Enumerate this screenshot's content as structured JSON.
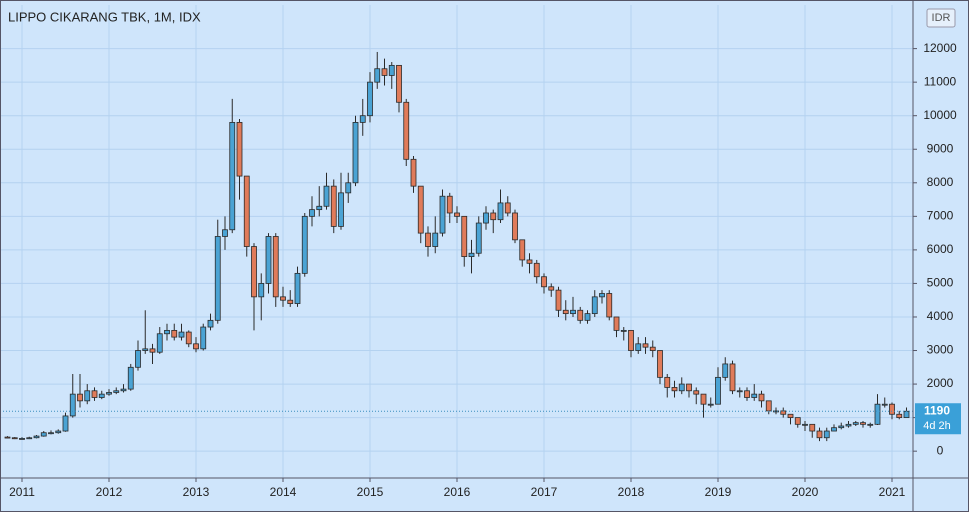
{
  "chart_data": {
    "type": "candlestick",
    "title": "LIPPO CIKARANG TBK, 1M, IDX",
    "currency": "IDR",
    "categories": [
      null,
      null,
      "2011",
      null,
      null,
      null,
      null,
      null,
      null,
      null,
      null,
      null,
      null,
      null,
      "2012",
      null,
      null,
      null,
      null,
      null,
      null,
      null,
      null,
      null,
      null,
      null,
      "2013",
      null,
      null,
      null,
      null,
      null,
      null,
      null,
      null,
      null,
      null,
      null,
      "2014",
      null,
      null,
      null,
      null,
      null,
      null,
      null,
      null,
      null,
      null,
      null,
      "2015",
      null,
      null,
      null,
      null,
      null,
      null,
      null,
      null,
      null,
      null,
      null,
      "2016",
      null,
      null,
      null,
      null,
      null,
      null,
      null,
      null,
      null,
      null,
      null,
      "2017",
      null,
      null,
      null,
      null,
      null,
      null,
      null,
      null,
      null,
      null,
      null,
      "2018",
      null,
      null,
      null,
      null,
      null,
      null,
      null,
      null,
      null,
      null,
      null,
      "2019",
      null,
      null,
      null,
      null,
      null,
      null,
      null,
      null,
      null,
      null,
      null,
      "2020",
      null,
      null,
      null,
      null,
      null,
      null,
      null,
      null,
      null,
      null,
      null,
      "2021",
      null,
      null
    ],
    "open": [
      420,
      400,
      380,
      380,
      400,
      450,
      550,
      550,
      600,
      1050,
      1700,
      1500,
      1800,
      1600,
      1700,
      1750,
      1800,
      1850,
      2500,
      3000,
      3050,
      2950,
      3500,
      3600,
      3400,
      3550,
      3200,
      3050,
      3700,
      3900,
      6400,
      6600,
      9800,
      8200,
      6100,
      4600,
      5000,
      6400,
      4600,
      4500,
      4400,
      5300,
      7000,
      7200,
      7300,
      7900,
      6700,
      7700,
      8000,
      9800,
      10000,
      11000,
      11400,
      11200,
      11500,
      10400,
      8700,
      7900,
      6500,
      6100,
      6500,
      7600,
      7100,
      7000,
      5800,
      5900,
      6800,
      7100,
      6900,
      7400,
      7100,
      6300,
      5700,
      5600,
      5200,
      4900,
      4800,
      4200,
      4100,
      4200,
      3900,
      4100,
      4600,
      4700,
      4000,
      3600,
      3600,
      3000,
      3200,
      3100,
      3000,
      2200,
      1900,
      1800,
      2000,
      1800,
      1700,
      1400,
      1400,
      2200,
      2600,
      1800,
      1800,
      1600,
      1700,
      1500,
      1200,
      1200,
      1100,
      1000,
      800,
      800,
      600,
      400,
      600,
      700,
      750,
      800,
      850,
      800,
      800,
      1400,
      1400,
      1100,
      1000
    ],
    "high": [
      450,
      420,
      420,
      430,
      480,
      600,
      620,
      650,
      1150,
      2300,
      2300,
      2000,
      1900,
      1800,
      1850,
      1900,
      2000,
      2600,
      3300,
      4200,
      3200,
      3700,
      3800,
      3800,
      3800,
      3600,
      3400,
      3800,
      4100,
      6900,
      7000,
      10500,
      9900,
      8200,
      6200,
      5300,
      6500,
      6500,
      4900,
      4800,
      5500,
      7100,
      7600,
      7900,
      8300,
      8100,
      8300,
      8300,
      10000,
      10500,
      11300,
      11900,
      11700,
      11600,
      11500,
      10500,
      8800,
      7900,
      6700,
      7000,
      7800,
      7700,
      7300,
      7000,
      6300,
      7000,
      7300,
      7200,
      7800,
      7600,
      7200,
      6300,
      5900,
      5700,
      5300,
      5000,
      4900,
      4500,
      4600,
      4300,
      4200,
      4800,
      4800,
      4800,
      4000,
      3700,
      3600,
      3400,
      3400,
      3300,
      3000,
      2300,
      2100,
      2200,
      2000,
      1900,
      1700,
      1600,
      2500,
      2800,
      2700,
      1900,
      1900,
      2000,
      1800,
      1500,
      1300,
      1300,
      1100,
      1000,
      900,
      800,
      700,
      700,
      800,
      850,
      900,
      900,
      900,
      850,
      1700,
      1600,
      1450,
      1200,
      1300
    ],
    "low": [
      380,
      360,
      350,
      360,
      380,
      430,
      500,
      520,
      580,
      1000,
      1300,
      1400,
      1500,
      1550,
      1650,
      1700,
      1750,
      1800,
      2400,
      2900,
      2600,
      2900,
      3300,
      3300,
      3300,
      3100,
      2950,
      3000,
      3600,
      3800,
      6000,
      6500,
      7500,
      5800,
      3600,
      3900,
      4700,
      4300,
      4300,
      4300,
      4300,
      5200,
      6700,
      7000,
      7200,
      6500,
      6600,
      7400,
      7900,
      9400,
      9800,
      10800,
      10900,
      10800,
      10100,
      8500,
      7700,
      6200,
      5800,
      5900,
      6400,
      6800,
      6800,
      5500,
      5300,
      5800,
      6600,
      6500,
      6800,
      7000,
      6200,
      5500,
      5300,
      5000,
      4700,
      4600,
      4000,
      3900,
      4000,
      3800,
      3800,
      4000,
      4400,
      3900,
      3400,
      3300,
      2800,
      2900,
      2900,
      2800,
      2000,
      1600,
      1600,
      1700,
      1600,
      1400,
      1000,
      1300,
      1400,
      2100,
      1700,
      1600,
      1500,
      1500,
      1300,
      1100,
      1100,
      1000,
      800,
      700,
      600,
      400,
      300,
      300,
      600,
      650,
      700,
      750,
      700,
      700,
      780,
      1300,
      950,
      950,
      990
    ],
    "close": [
      400,
      380,
      380,
      400,
      450,
      550,
      550,
      600,
      1050,
      1700,
      1500,
      1800,
      1600,
      1700,
      1750,
      1800,
      1850,
      2500,
      3000,
      3050,
      2950,
      3500,
      3600,
      3400,
      3550,
      3200,
      3050,
      3700,
      3900,
      6400,
      6600,
      9800,
      8200,
      6100,
      4600,
      5000,
      6400,
      4600,
      4500,
      4400,
      5300,
      7000,
      7200,
      7300,
      7900,
      6700,
      7700,
      8000,
      9800,
      10000,
      11000,
      11400,
      11200,
      11500,
      10400,
      8700,
      7900,
      6500,
      6100,
      6500,
      7600,
      7100,
      7000,
      5800,
      5900,
      6800,
      7100,
      6900,
      7400,
      7100,
      6300,
      5700,
      5600,
      5200,
      4900,
      4800,
      4200,
      4100,
      4200,
      3900,
      4100,
      4600,
      4700,
      4000,
      3600,
      3600,
      3000,
      3200,
      3100,
      3000,
      2200,
      1900,
      1800,
      2000,
      1800,
      1700,
      1400,
      1400,
      2200,
      2600,
      1800,
      1800,
      1600,
      1700,
      1500,
      1200,
      1200,
      1100,
      1000,
      800,
      800,
      600,
      400,
      600,
      700,
      750,
      800,
      850,
      800,
      800,
      1400,
      1400,
      1100,
      1000,
      1190
    ],
    "colors": {
      "up": "#4aa3d4",
      "down": "#e07b5a"
    },
    "ylim": [
      -800,
      13300
    ],
    "yticks": [
      0,
      1000,
      2000,
      3000,
      4000,
      5000,
      6000,
      7000,
      8000,
      9000,
      10000,
      11000,
      12000
    ],
    "grid": true,
    "last_price": 1190,
    "countdown": "4d 2h"
  }
}
